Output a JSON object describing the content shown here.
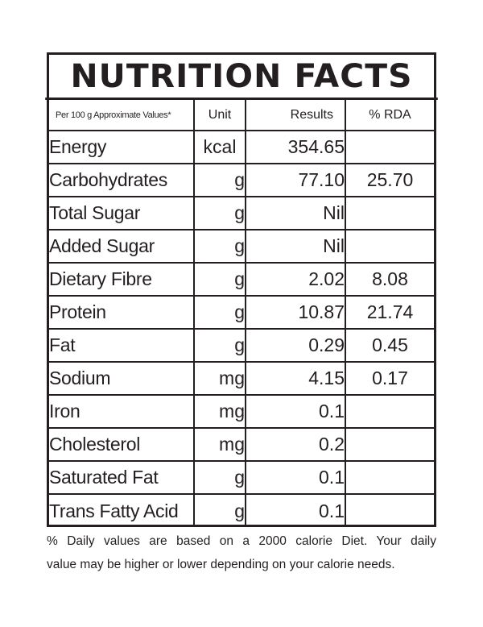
{
  "title": "NUTRITION FACTS",
  "header": {
    "per": "Per 100 g Approximate Values*",
    "unit": "Unit",
    "results": "Results",
    "rda": "% RDA"
  },
  "rows": [
    {
      "name": "Energy",
      "unit": "kcal",
      "result": "354.65",
      "rda": ""
    },
    {
      "name": "Carbohydrates",
      "unit": "g",
      "result": "77.10",
      "rda": "25.70"
    },
    {
      "name": "Total Sugar",
      "unit": "g",
      "result": "Nil",
      "rda": ""
    },
    {
      "name": "Added Sugar",
      "unit": "g",
      "result": "Nil",
      "rda": ""
    },
    {
      "name": "Dietary Fibre",
      "unit": "g",
      "result": "2.02",
      "rda": "8.08"
    },
    {
      "name": "Protein",
      "unit": "g",
      "result": "10.87",
      "rda": "21.74"
    },
    {
      "name": "Fat",
      "unit": "g",
      "result": "0.29",
      "rda": "0.45"
    },
    {
      "name": "Sodium",
      "unit": "mg",
      "result": "4.15",
      "rda": "0.17"
    },
    {
      "name": "Iron",
      "unit": "mg",
      "result": "0.1",
      "rda": ""
    },
    {
      "name": "Cholesterol",
      "unit": "mg",
      "result": "0.2",
      "rda": ""
    },
    {
      "name": "Saturated Fat",
      "unit": "g",
      "result": "0.1",
      "rda": ""
    },
    {
      "name": "Trans Fatty Acid",
      "unit": "g",
      "result": "0.1",
      "rda": ""
    }
  ],
  "footnote": {
    "line1": "% Daily values are based on a 2000 calorie Diet. Your daily",
    "line2": "value may be higher or lower depending on your calorie needs."
  }
}
